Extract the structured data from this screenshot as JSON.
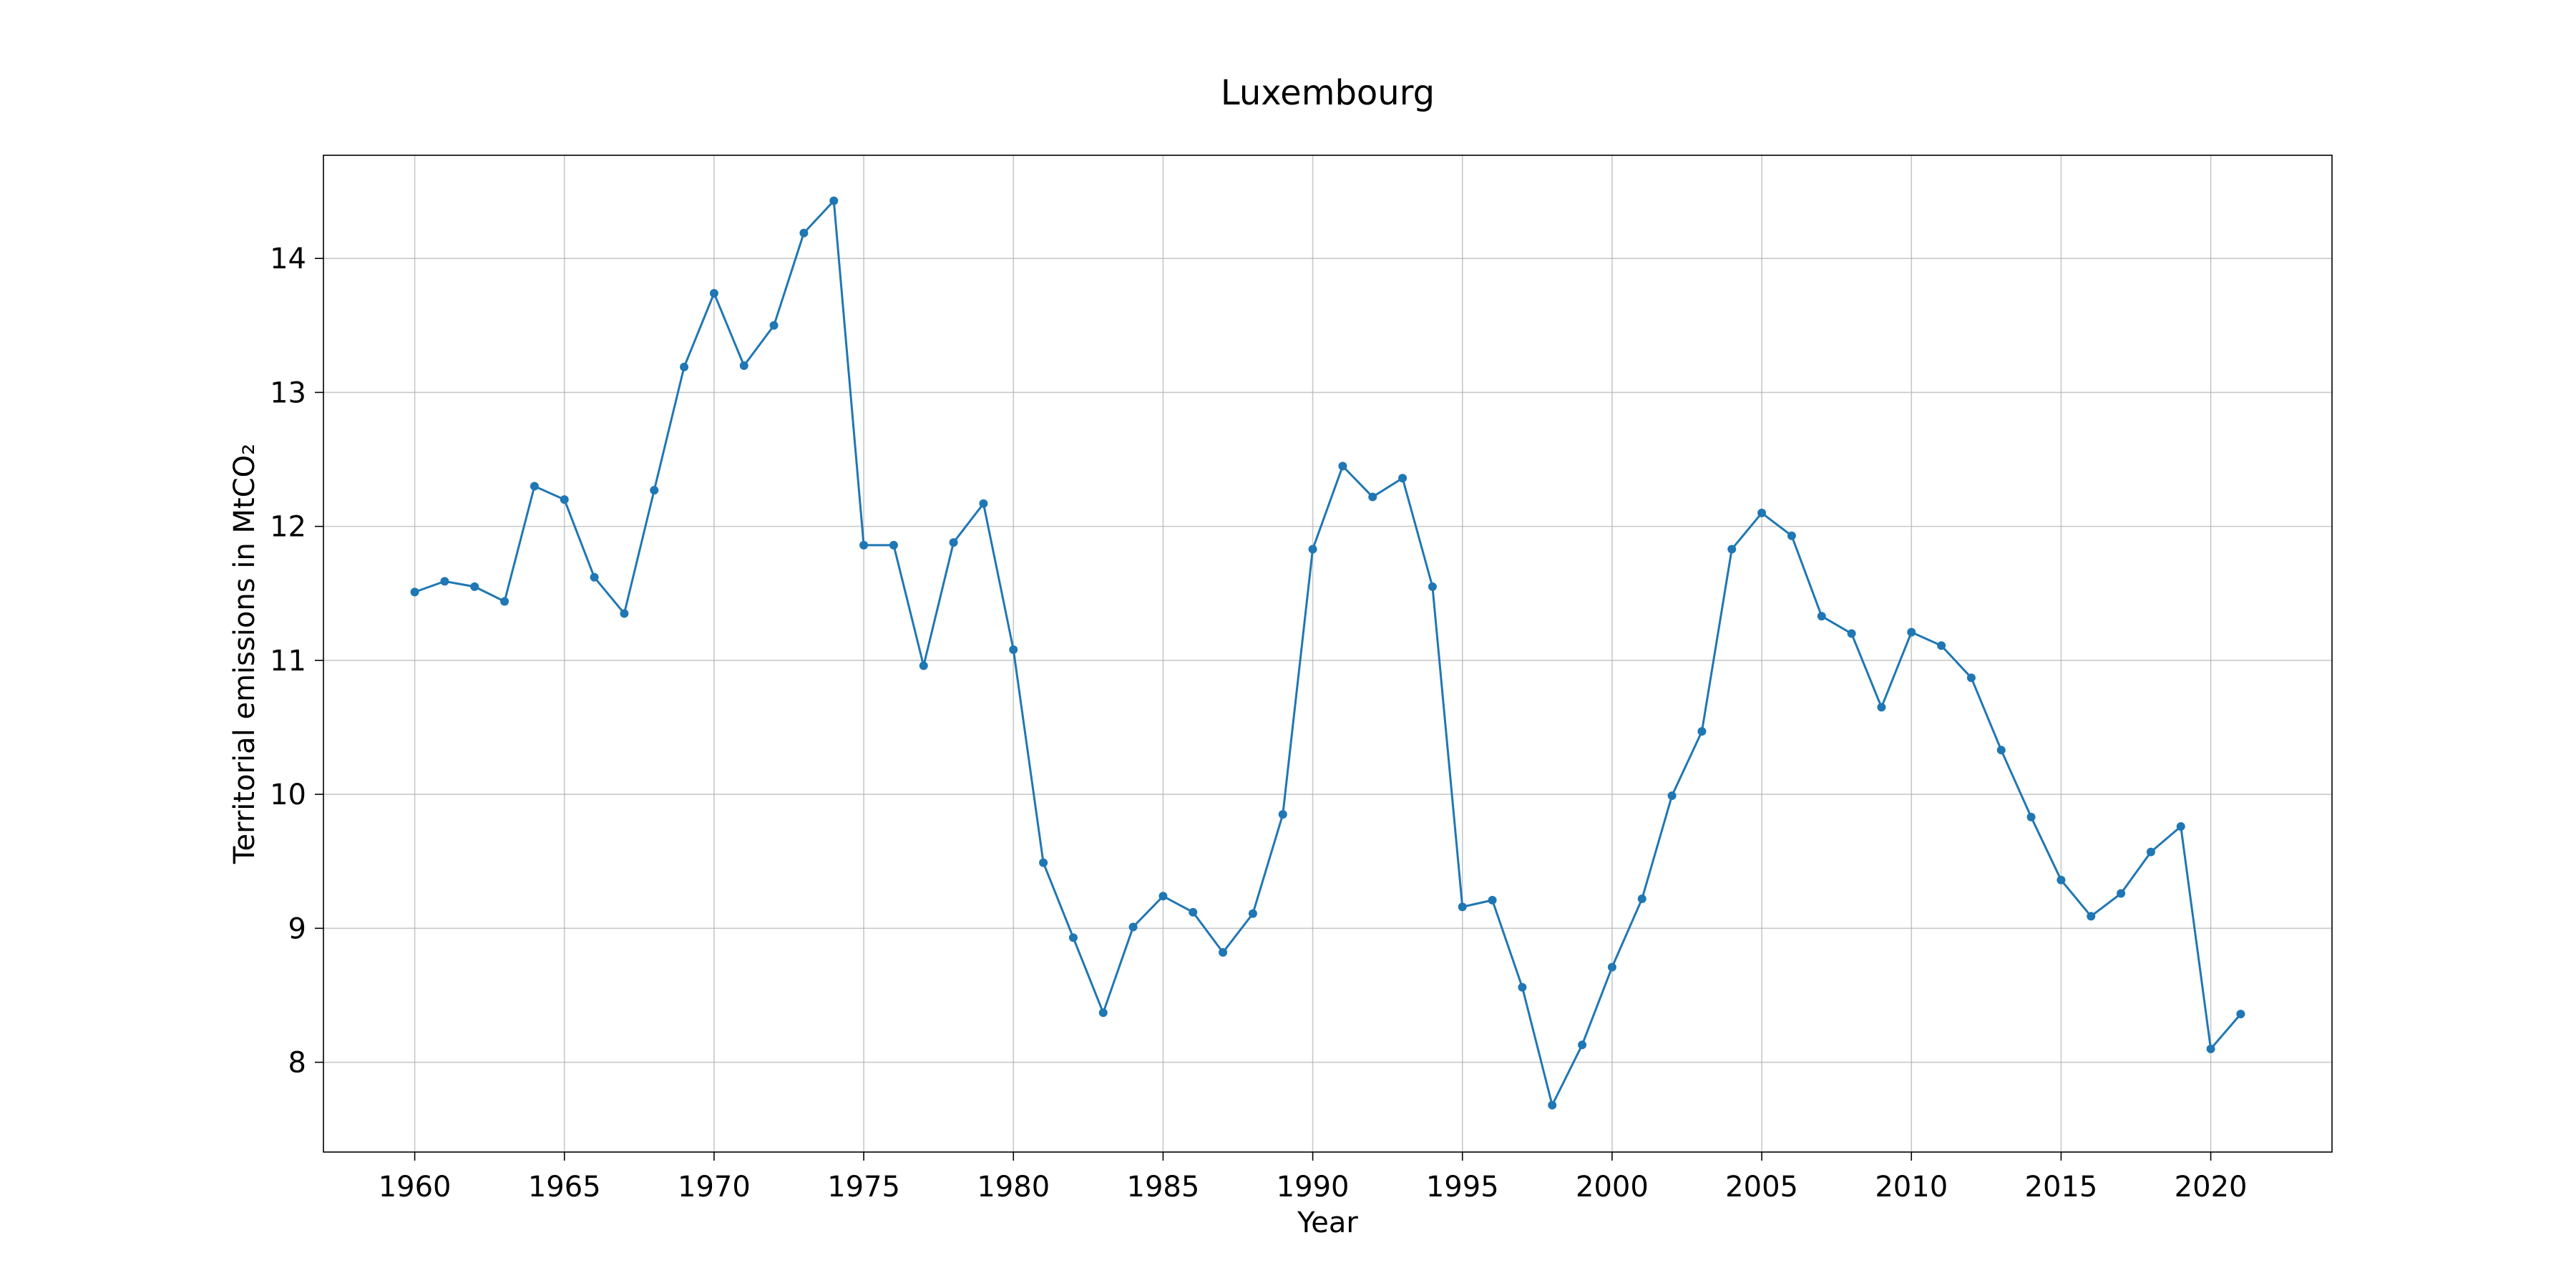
{
  "chart_data": {
    "type": "line",
    "title": "Luxembourg",
    "xlabel": "Year",
    "ylabel": "Territorial emissions in MtCO₂",
    "xlim": [
      1956.95,
      2024.05
    ],
    "ylim": [
      7.33,
      14.77
    ],
    "xticks": [
      1960,
      1965,
      1970,
      1975,
      1980,
      1985,
      1990,
      1995,
      2000,
      2005,
      2010,
      2015,
      2020
    ],
    "yticks": [
      8,
      9,
      10,
      11,
      12,
      13,
      14
    ],
    "grid": true,
    "legend": "none",
    "marker": "circle",
    "colors": {
      "line": "#1f77b4",
      "grid": "#b0b0b0",
      "frame": "#000000",
      "text": "#000000"
    },
    "x": [
      1960,
      1961,
      1962,
      1963,
      1964,
      1965,
      1966,
      1967,
      1968,
      1969,
      1970,
      1971,
      1972,
      1973,
      1974,
      1975,
      1976,
      1977,
      1978,
      1979,
      1980,
      1981,
      1982,
      1983,
      1984,
      1985,
      1986,
      1987,
      1988,
      1989,
      1990,
      1991,
      1992,
      1993,
      1994,
      1995,
      1996,
      1997,
      1998,
      1999,
      2000,
      2001,
      2002,
      2003,
      2004,
      2005,
      2006,
      2007,
      2008,
      2009,
      2010,
      2011,
      2012,
      2013,
      2014,
      2015,
      2016,
      2017,
      2018,
      2019,
      2020,
      2021
    ],
    "series": [
      {
        "values": [
          11.51,
          11.59,
          11.55,
          11.44,
          12.3,
          12.2,
          11.62,
          11.35,
          12.27,
          13.19,
          13.74,
          13.2,
          13.5,
          14.19,
          14.43,
          11.86,
          11.86,
          10.96,
          11.88,
          12.17,
          11.08,
          9.49,
          8.93,
          8.37,
          9.01,
          9.24,
          9.12,
          8.82,
          9.11,
          9.85,
          11.83,
          12.45,
          12.22,
          12.36,
          11.55,
          9.16,
          9.21,
          8.56,
          7.68,
          8.13,
          8.71,
          9.22,
          9.99,
          10.47,
          11.83,
          12.1,
          11.93,
          11.33,
          11.2,
          10.65,
          11.21,
          11.11,
          10.87,
          10.33,
          9.83,
          9.36,
          9.09,
          9.26,
          9.57,
          9.76,
          8.1,
          8.36
        ]
      }
    ]
  }
}
